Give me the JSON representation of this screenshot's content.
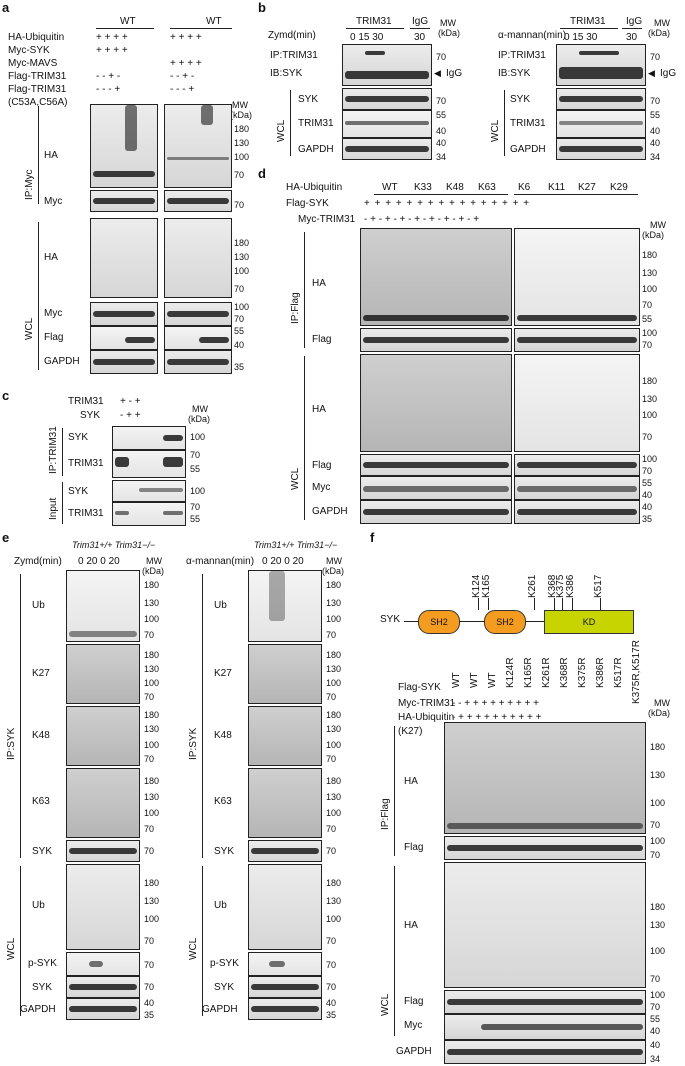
{
  "panel_a": {
    "letter": "a",
    "header_wt1": "WT",
    "header_wt2": "WT",
    "rows": [
      {
        "label": "HA-Ubiquitin",
        "s1": "+   +   +   +",
        "s2": "+   +   +   +"
      },
      {
        "label": "Myc-SYK",
        "s1": "+   +   +   +",
        "s2": ""
      },
      {
        "label": "Myc-MAVS",
        "s1": "",
        "s2": "+   +   +   +"
      },
      {
        "label": "Flag-TRIM31",
        "s1": "-   -   +   -",
        "s2": "-   -   +   -"
      },
      {
        "label": "Flag-TRIM31",
        "s1": "-   -   -   +",
        "s2": "-   -   -   +"
      },
      {
        "label": "(C53A,C56A)",
        "s1": "",
        "s2": ""
      }
    ],
    "mw": "MW",
    "kda": "(kDa)",
    "group_ip": "IP:Myc",
    "group_wcl": "WCL",
    "blot_labels": [
      "HA",
      "Myc",
      "HA",
      "Myc",
      "Flag",
      "GAPDH"
    ],
    "ticks": [
      "180",
      "130",
      "100",
      "70",
      "70",
      "180",
      "130",
      "100",
      "70",
      "100",
      "70",
      "55",
      "40",
      "35"
    ]
  },
  "panel_b": {
    "letter": "b",
    "left": {
      "cond": "Zymd(min)",
      "ab": "TRIM31",
      "igg": "IgG",
      "times": "0   15   30",
      "igg_time": "30"
    },
    "right": {
      "cond": "α-mannan(min)",
      "ab": "TRIM31",
      "igg": "IgG",
      "times": "0   15   30",
      "igg_time": "30"
    },
    "mw": "MW",
    "kda": "(kDa)",
    "ip_label": "IP:TRIM31",
    "ib_label": "IB:SYK",
    "igg_arrow": "IgG",
    "group_wcl": "WCL",
    "blot_labels": [
      "SYK",
      "TRIM31",
      "GAPDH"
    ],
    "ticks": [
      "70",
      "70",
      "55",
      "40",
      "40",
      "34"
    ]
  },
  "panel_c": {
    "letter": "c",
    "rows": [
      {
        "label": "TRIM31",
        "vals": "+   -   +"
      },
      {
        "label": "SYK",
        "vals": "-   +   +"
      }
    ],
    "mw": "MW",
    "kda": "(kDa)",
    "group_ip": "IP:TRIM31",
    "group_input": "Input",
    "blot_labels": [
      "SYK",
      "TRIM31",
      "SYK",
      "TRIM31"
    ],
    "ticks": [
      "100",
      "70",
      "55",
      "100",
      "70",
      "55"
    ]
  },
  "panel_d": {
    "letter": "d",
    "rows": [
      "HA-Ubiquitin",
      "Flag-SYK",
      "Myc-TRIM31"
    ],
    "ub_types": [
      "WT",
      "K33",
      "K48",
      "K63",
      "K6",
      "K11",
      "K27",
      "K29"
    ],
    "flag_row": "+ + + + + + + + + + + + + + + +",
    "myc_row": "-  +  -  +  -  +  -  +   -  +  -  +  -  +  -  +",
    "mw": "MW",
    "kda": "(kDa)",
    "group_ip": "IP:Flag",
    "group_wcl": "WCL",
    "blot_labels": [
      "HA",
      "Flag",
      "HA",
      "Flag",
      "Myc",
      "GAPDH"
    ],
    "ticks": [
      "180",
      "130",
      "100",
      "70",
      "55",
      "100",
      "70",
      "180",
      "130",
      "100",
      "70",
      "100",
      "70",
      "55",
      "40",
      "40",
      "35"
    ]
  },
  "panel_e": {
    "letter": "e",
    "geno": "Trim31+/+ Trim31−/−",
    "left_cond": "Zymd(min)",
    "right_cond": "α-mannan(min)",
    "times": "0   20   0   20",
    "mw": "MW",
    "kda": "(kDa)",
    "group_ip": "IP:SYK",
    "group_wcl": "WCL",
    "blot_labels": [
      "Ub",
      "K27",
      "K48",
      "K63",
      "SYK",
      "Ub",
      "p-SYK",
      "SYK",
      "GAPDH"
    ],
    "ticks": [
      "180",
      "130",
      "100",
      "70",
      "180",
      "130",
      "100",
      "70",
      "180",
      "130",
      "100",
      "70",
      "180",
      "130",
      "100",
      "70",
      "70",
      "180",
      "130",
      "100",
      "70",
      "70",
      "70",
      "40",
      "35"
    ]
  },
  "panel_f": {
    "letter": "f",
    "protein": "SYK",
    "domains": [
      "SH2",
      "SH2",
      "KD"
    ],
    "sites": [
      "K124",
      "K165",
      "K261",
      "K368",
      "K375",
      "K386",
      "K517"
    ],
    "mutants": [
      "WT",
      "WT",
      "WT",
      "K124R",
      "K165R",
      "K261R",
      "K368R",
      "K375R",
      "K386R",
      "K517R",
      "K375R,K517R"
    ],
    "rows": [
      {
        "label": "Flag-SYK",
        "vals": ""
      },
      {
        "label": "Myc-TRIM31",
        "vals": "-   -   +   +   +   +   +   +   +   +   +"
      },
      {
        "label": "HA-Ubiquitin",
        "vals": "-   +   +   +   +   +   +   +   +   +   +"
      },
      {
        "label": "(K27)",
        "vals": ""
      }
    ],
    "mw": "MW",
    "kda": "(kDa)",
    "group_ip": "IP:Flag",
    "group_wcl": "WCL",
    "blot_labels": [
      "HA",
      "Flag",
      "HA",
      "Flag",
      "Myc",
      "GAPDH"
    ],
    "ticks": [
      "180",
      "130",
      "100",
      "70",
      "100",
      "70",
      "180",
      "130",
      "100",
      "70",
      "100",
      "70",
      "55",
      "40",
      "40",
      "34"
    ]
  }
}
